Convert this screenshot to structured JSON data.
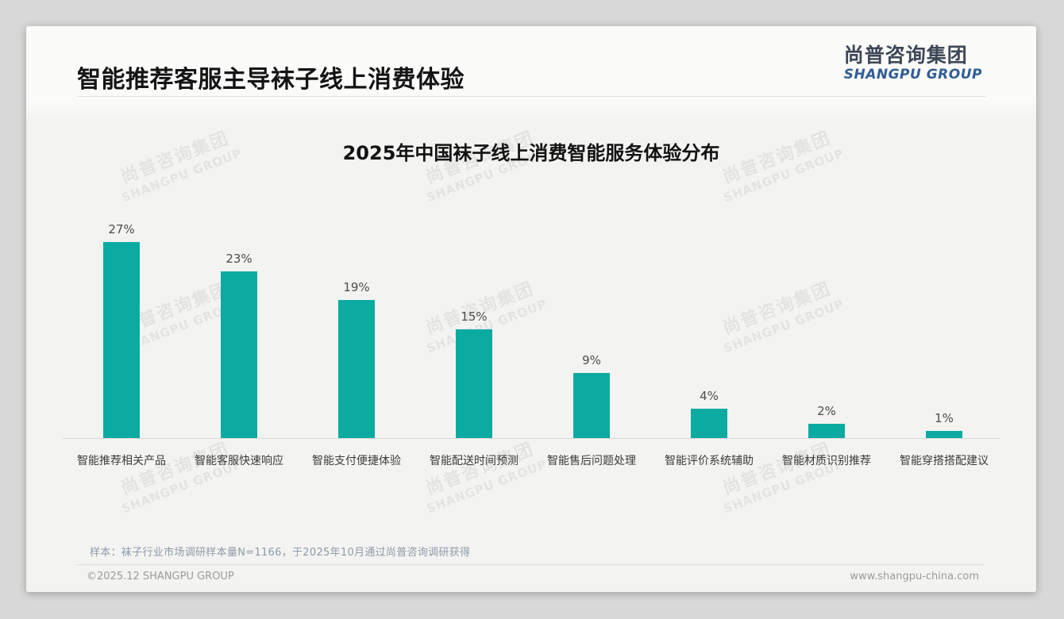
{
  "header": {
    "title": "智能推荐客服主导袜子线上消费体验"
  },
  "logo": {
    "cn": "尚普咨询集团",
    "en": "SHANGPU GROUP"
  },
  "watermark": {
    "cn": "尚普咨询集团",
    "en": "SHANGPU GROUP"
  },
  "chart_data": {
    "type": "bar",
    "title": "2025年中国袜子线上消费智能服务体验分布",
    "categories": [
      "智能推荐相关产品",
      "智能客服快速响应",
      "智能支付便捷体验",
      "智能配送时间预测",
      "智能售后问题处理",
      "智能评价系统辅助",
      "智能材质识别推荐",
      "智能穿搭搭配建议"
    ],
    "values": [
      27,
      23,
      19,
      15,
      9,
      4,
      2,
      1
    ],
    "value_suffix": "%",
    "bar_color": "#0caba1",
    "xlabel": "",
    "ylabel": "",
    "ylim": [
      0,
      30
    ],
    "grid": false,
    "legend": false
  },
  "footnote": "样本：袜子行业市场调研样本量N=1166，于2025年10月通过尚普咨询调研获得",
  "footer": {
    "copyright": "©2025.12 SHANGPU GROUP",
    "website": "www.shangpu-china.com"
  }
}
